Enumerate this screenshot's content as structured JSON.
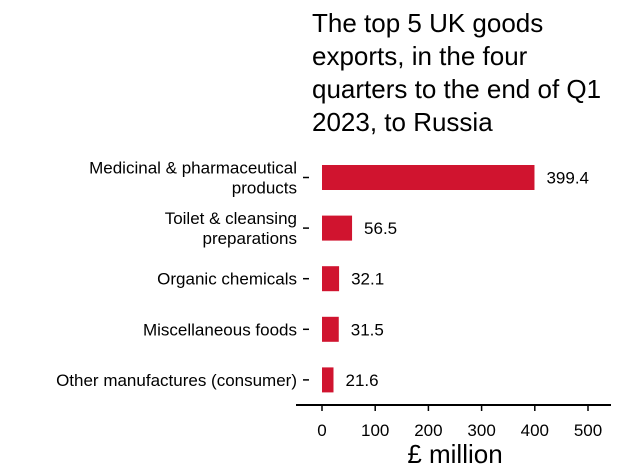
{
  "chart_data": {
    "type": "bar",
    "orientation": "horizontal",
    "title_lines": [
      "The top 5 UK goods",
      "exports, in the four",
      "quarters to the end of Q1",
      "2023, to Russia"
    ],
    "categories": [
      [
        "Medicinal & pharmaceutical",
        "products"
      ],
      [
        "Toilet & cleansing",
        "preparations"
      ],
      [
        "Organic chemicals"
      ],
      [
        "Miscellaneous foods"
      ],
      [
        "Other manufactures (consumer)"
      ]
    ],
    "values": [
      399.4,
      56.5,
      32.1,
      31.5,
      21.6
    ],
    "value_labels": [
      "399.4",
      "56.5",
      "32.1",
      "31.5",
      "21.6"
    ],
    "xlabel": "£ million",
    "xlim": [
      0,
      500
    ],
    "xticks": [
      0,
      100,
      200,
      300,
      400,
      500
    ],
    "bar_color": "#d0142f",
    "grid": false,
    "legend": "none"
  }
}
